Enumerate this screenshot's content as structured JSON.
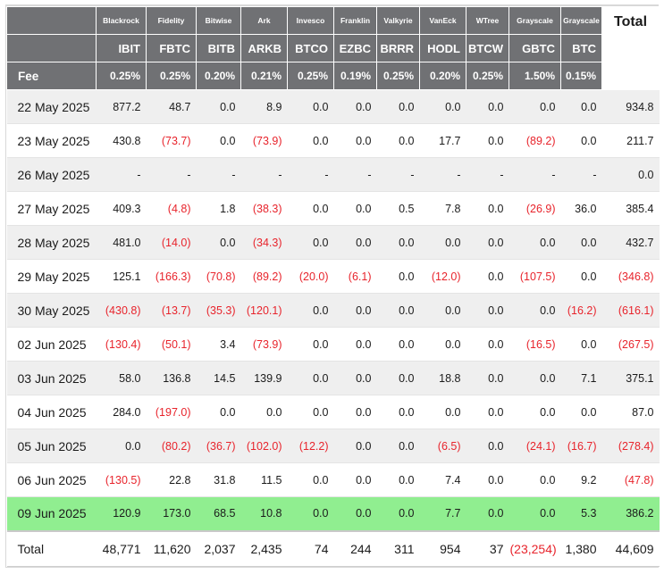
{
  "colors": {
    "header_bg": "#707174",
    "negative": "#e8242c",
    "highlight_row": "#90ee90",
    "stripe": "#efefef"
  },
  "chart_data": {
    "type": "table",
    "companies": [
      "Blackrock",
      "Fidelity",
      "Bitwise",
      "Ark",
      "Invesco",
      "Franklin",
      "Valkyrie",
      "VanEck",
      "WTree",
      "Grayscale",
      "Grayscale"
    ],
    "tickers": [
      "IBIT",
      "FBTC",
      "BITB",
      "ARKB",
      "BTCO",
      "EZBC",
      "BRRR",
      "HODL",
      "BTCW",
      "GBTC",
      "BTC"
    ],
    "fee_label": "Fee",
    "fees": [
      "0.25%",
      "0.25%",
      "0.20%",
      "0.21%",
      "0.25%",
      "0.19%",
      "0.25%",
      "0.20%",
      "0.25%",
      "1.50%",
      "0.15%"
    ],
    "total_label": "Total",
    "rows": [
      {
        "date": "22 May 2025",
        "values": [
          "877.2",
          "48.7",
          "0.0",
          "8.9",
          "0.0",
          "0.0",
          "0.0",
          "0.0",
          "0.0",
          "0.0",
          "0.0"
        ],
        "total": "934.8",
        "highlight": false
      },
      {
        "date": "23 May 2025",
        "values": [
          "430.8",
          "(73.7)",
          "0.0",
          "(73.9)",
          "0.0",
          "0.0",
          "0.0",
          "17.7",
          "0.0",
          "(89.2)",
          "0.0"
        ],
        "total": "211.7",
        "highlight": false
      },
      {
        "date": "26 May 2025",
        "values": [
          "-",
          "-",
          "-",
          "-",
          "-",
          "-",
          "-",
          "-",
          "-",
          "-",
          "-"
        ],
        "total": "0.0",
        "highlight": false
      },
      {
        "date": "27 May 2025",
        "values": [
          "409.3",
          "(4.8)",
          "1.8",
          "(38.3)",
          "0.0",
          "0.0",
          "0.5",
          "7.8",
          "0.0",
          "(26.9)",
          "36.0"
        ],
        "total": "385.4",
        "highlight": false
      },
      {
        "date": "28 May 2025",
        "values": [
          "481.0",
          "(14.0)",
          "0.0",
          "(34.3)",
          "0.0",
          "0.0",
          "0.0",
          "0.0",
          "0.0",
          "0.0",
          "0.0"
        ],
        "total": "432.7",
        "highlight": false
      },
      {
        "date": "29 May 2025",
        "values": [
          "125.1",
          "(166.3)",
          "(70.8)",
          "(89.2)",
          "(20.0)",
          "(6.1)",
          "0.0",
          "(12.0)",
          "0.0",
          "(107.5)",
          "0.0"
        ],
        "total": "(346.8)",
        "highlight": false
      },
      {
        "date": "30 May 2025",
        "values": [
          "(430.8)",
          "(13.7)",
          "(35.3)",
          "(120.1)",
          "0.0",
          "0.0",
          "0.0",
          "0.0",
          "0.0",
          "0.0",
          "(16.2)"
        ],
        "total": "(616.1)",
        "highlight": false
      },
      {
        "date": "02 Jun 2025",
        "values": [
          "(130.4)",
          "(50.1)",
          "3.4",
          "(73.9)",
          "0.0",
          "0.0",
          "0.0",
          "0.0",
          "0.0",
          "(16.5)",
          "0.0"
        ],
        "total": "(267.5)",
        "highlight": false
      },
      {
        "date": "03 Jun 2025",
        "values": [
          "58.0",
          "136.8",
          "14.5",
          "139.9",
          "0.0",
          "0.0",
          "0.0",
          "18.8",
          "0.0",
          "0.0",
          "7.1"
        ],
        "total": "375.1",
        "highlight": false
      },
      {
        "date": "04 Jun 2025",
        "values": [
          "284.0",
          "(197.0)",
          "0.0",
          "0.0",
          "0.0",
          "0.0",
          "0.0",
          "0.0",
          "0.0",
          "0.0",
          "0.0"
        ],
        "total": "87.0",
        "highlight": false
      },
      {
        "date": "05 Jun 2025",
        "values": [
          "0.0",
          "(80.2)",
          "(36.7)",
          "(102.0)",
          "(12.2)",
          "0.0",
          "0.0",
          "(6.5)",
          "0.0",
          "(24.1)",
          "(16.7)"
        ],
        "total": "(278.4)",
        "highlight": false
      },
      {
        "date": "06 Jun 2025",
        "values": [
          "(130.5)",
          "22.8",
          "31.8",
          "11.5",
          "0.0",
          "0.0",
          "0.0",
          "7.4",
          "0.0",
          "0.0",
          "9.2"
        ],
        "total": "(47.8)",
        "highlight": false
      },
      {
        "date": "09 Jun 2025",
        "values": [
          "120.9",
          "173.0",
          "68.5",
          "10.8",
          "0.0",
          "0.0",
          "0.0",
          "7.7",
          "0.0",
          "0.0",
          "5.3"
        ],
        "total": "386.2",
        "highlight": true
      }
    ],
    "total_row": {
      "label": "Total",
      "values": [
        "48,771",
        "11,620",
        "2,037",
        "2,435",
        "74",
        "244",
        "311",
        "954",
        "37",
        "(23,254)",
        "1,380"
      ],
      "total": "44,609"
    }
  }
}
